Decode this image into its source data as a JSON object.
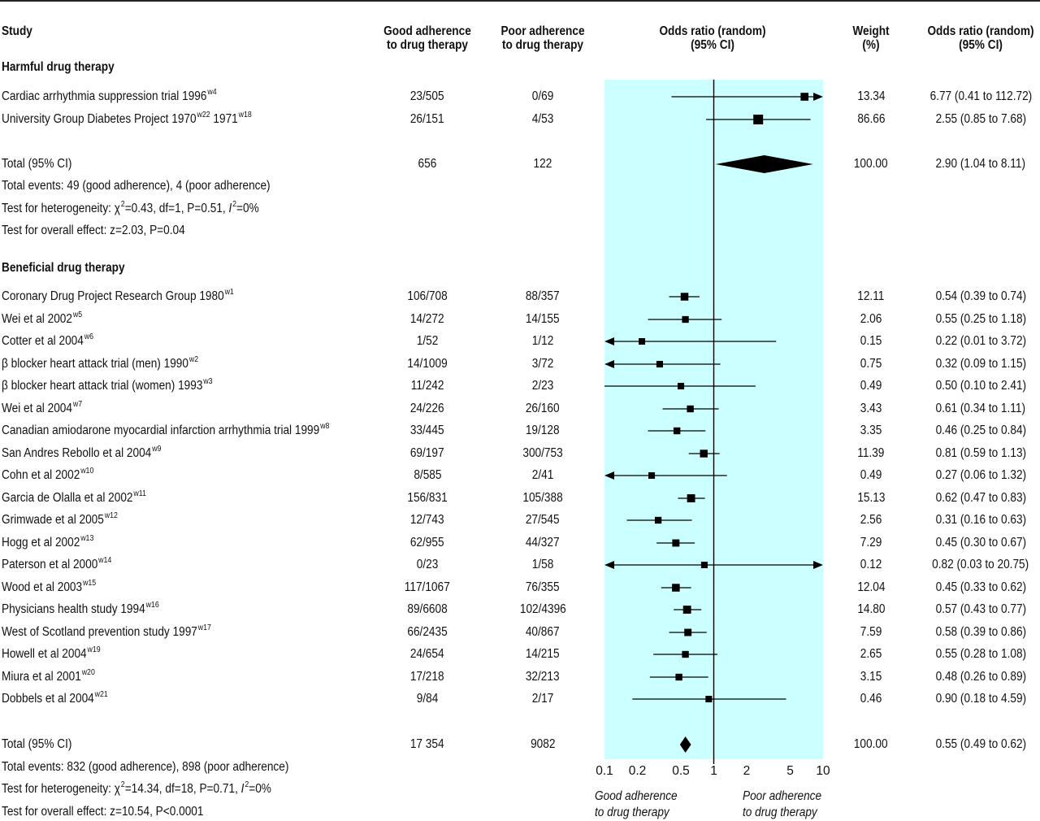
{
  "headers": {
    "study": "Study",
    "good": [
      "Good adherence",
      "to drug therapy"
    ],
    "poor": [
      "Poor adherence",
      "to drug therapy"
    ],
    "or_plot": [
      "Odds ratio (random)",
      "(95% CI)"
    ],
    "weight": [
      "Weight",
      "(%)"
    ],
    "or_text": [
      "Odds ratio (random)",
      "(95% CI)"
    ]
  },
  "harmful": {
    "title": "Harmful drug therapy",
    "total_label": "Total (95% CI)",
    "total_good": "656",
    "total_poor": "122",
    "total_weight": "100.00",
    "total_or": "2.90 (1.04 to 8.11)",
    "events": "Total events: 49 (good adherence), 4 (poor adherence)",
    "het_prefix": "Test for heterogeneity: ",
    "het_chi": "χ",
    "het_sup": "2",
    "het_mid": "=0.43, df=1, P=0.51, ",
    "het_i": "I",
    "het_isup": "2",
    "het_end": "=0%",
    "overall": "Test for overall effect: z=2.03, P=0.04"
  },
  "beneficial": {
    "title": "Beneficial drug therapy",
    "total_label": "Total (95% CI)",
    "total_good": "17 354",
    "total_poor": "9082",
    "total_weight": "100.00",
    "total_or": "0.55 (0.49 to 0.62)",
    "events": "Total events: 832 (good adherence), 898 (poor adherence)",
    "het_prefix": "Test for heterogeneity: ",
    "het_chi": "χ",
    "het_sup": "2",
    "het_mid": "=14.34, df=18, P=0.71, ",
    "het_i": "I",
    "het_isup": "2",
    "het_end": "=0%",
    "overall": "Test for overall effect: z=10.54, P<0.0001"
  },
  "axis": {
    "ticks": [
      "0.1",
      "0.2",
      "0.5",
      "1",
      "2",
      "5",
      "10"
    ],
    "left_label": [
      "Good adherence",
      "to drug therapy"
    ],
    "right_label": [
      "Poor adherence",
      "to drug therapy"
    ]
  },
  "chart_data": {
    "type": "forest",
    "x_scale": "log",
    "xlim": [
      0.1,
      10
    ],
    "reference_line": 1,
    "panel_color": "#ccffff",
    "groups": [
      {
        "name": "Harmful drug therapy",
        "studies": [
          {
            "name": "Cardiac arrhythmia suppression trial 1996",
            "sup": "w4",
            "good": "23/505",
            "poor": "0/69",
            "weight": "13.34",
            "or_text": "6.77 (0.41 to 112.72)",
            "or": 6.77,
            "lo": 0.41,
            "hi": 112.72
          },
          {
            "name": "University Group Diabetes Project 1970",
            "sup": "w22",
            "name2": " 1971",
            "sup2": "w18",
            "good": "26/151",
            "poor": "4/53",
            "weight": "86.66",
            "or_text": "2.55 (0.85 to 7.68)",
            "or": 2.55,
            "lo": 0.85,
            "hi": 7.68
          }
        ],
        "total": {
          "or": 2.9,
          "lo": 1.04,
          "hi": 8.11
        }
      },
      {
        "name": "Beneficial drug therapy",
        "studies": [
          {
            "name": "Coronary Drug Project Research Group 1980",
            "sup": "w1",
            "good": "106/708",
            "poor": "88/357",
            "weight": "12.11",
            "or_text": "0.54 (0.39 to 0.74)",
            "or": 0.54,
            "lo": 0.39,
            "hi": 0.74
          },
          {
            "name": "Wei et al 2002",
            "sup": "w5",
            "good": "14/272",
            "poor": "14/155",
            "weight": "2.06",
            "or_text": "0.55 (0.25 to 1.18)",
            "or": 0.55,
            "lo": 0.25,
            "hi": 1.18
          },
          {
            "name": "Cotter et al 2004",
            "sup": "w6",
            "good": "1/52",
            "poor": "1/12",
            "weight": "0.15",
            "or_text": "0.22 (0.01 to 3.72)",
            "or": 0.22,
            "lo": 0.01,
            "hi": 3.72
          },
          {
            "name": "β blocker heart attack trial (men) 1990",
            "sup": "w2",
            "good": "14/1009",
            "poor": "3/72",
            "weight": "0.75",
            "or_text": "0.32 (0.09 to 1.15)",
            "or": 0.32,
            "lo": 0.09,
            "hi": 1.15
          },
          {
            "name": "β blocker heart attack trial (women) 1993",
            "sup": "w3",
            "good": "11/242",
            "poor": "2/23",
            "weight": "0.49",
            "or_text": "0.50 (0.10 to 2.41)",
            "or": 0.5,
            "lo": 0.1,
            "hi": 2.41
          },
          {
            "name": "Wei et al 2004",
            "sup": "w7",
            "good": "24/226",
            "poor": "26/160",
            "weight": "3.43",
            "or_text": "0.61 (0.34 to 1.11)",
            "or": 0.61,
            "lo": 0.34,
            "hi": 1.11
          },
          {
            "name": "Canadian amiodarone myocardial infarction arrhythmia trial 1999",
            "sup": "w8",
            "good": "33/445",
            "poor": "19/128",
            "weight": "3.35",
            "or_text": "0.46 (0.25 to 0.84)",
            "or": 0.46,
            "lo": 0.25,
            "hi": 0.84
          },
          {
            "name": "San Andres Rebollo et al 2004",
            "sup": "w9",
            "good": "69/197",
            "poor": "300/753",
            "weight": "11.39",
            "or_text": "0.81 (0.59 to 1.13)",
            "or": 0.81,
            "lo": 0.59,
            "hi": 1.13
          },
          {
            "name": "Cohn et al 2002",
            "sup": "w10",
            "good": "8/585",
            "poor": "2/41",
            "weight": "0.49",
            "or_text": "0.27 (0.06 to 1.32)",
            "or": 0.27,
            "lo": 0.06,
            "hi": 1.32
          },
          {
            "name": "Garcia de Olalla et al 2002",
            "sup": "w11",
            "good": "156/831",
            "poor": "105/388",
            "weight": "15.13",
            "or_text": "0.62 (0.47 to 0.83)",
            "or": 0.62,
            "lo": 0.47,
            "hi": 0.83
          },
          {
            "name": "Grimwade et al 2005",
            "sup": "w12",
            "good": "12/743",
            "poor": "27/545",
            "weight": "2.56",
            "or_text": "0.31 (0.16 to 0.63)",
            "or": 0.31,
            "lo": 0.16,
            "hi": 0.63
          },
          {
            "name": "Hogg et al 2002",
            "sup": "w13",
            "good": "62/955",
            "poor": "44/327",
            "weight": "7.29",
            "or_text": "0.45 (0.30 to 0.67)",
            "or": 0.45,
            "lo": 0.3,
            "hi": 0.67
          },
          {
            "name": "Paterson et al 2000",
            "sup": "w14",
            "good": "0/23",
            "poor": "1/58",
            "weight": "0.12",
            "or_text": "0.82 (0.03 to 20.75)",
            "or": 0.82,
            "lo": 0.03,
            "hi": 20.75
          },
          {
            "name": "Wood et al 2003",
            "sup": "w15",
            "good": "117/1067",
            "poor": "76/355",
            "weight": "12.04",
            "or_text": "0.45 (0.33 to 0.62)",
            "or": 0.45,
            "lo": 0.33,
            "hi": 0.62
          },
          {
            "name": "Physicians health study 1994",
            "sup": "w16",
            "good": "89/6608",
            "poor": "102/4396",
            "weight": "14.80",
            "or_text": "0.57 (0.43 to 0.77)",
            "or": 0.57,
            "lo": 0.43,
            "hi": 0.77
          },
          {
            "name": "West of Scotland prevention study 1997",
            "sup": "w17",
            "good": "66/2435",
            "poor": "40/867",
            "weight": "7.59",
            "or_text": "0.58 (0.39 to 0.86)",
            "or": 0.58,
            "lo": 0.39,
            "hi": 0.86
          },
          {
            "name": "Howell et al 2004",
            "sup": "w19",
            "good": "24/654",
            "poor": "14/215",
            "weight": "2.65",
            "or_text": "0.55 (0.28 to 1.08)",
            "or": 0.55,
            "lo": 0.28,
            "hi": 1.08
          },
          {
            "name": "Miura et al 2001",
            "sup": "w20",
            "good": "17/218",
            "poor": "32/213",
            "weight": "3.15",
            "or_text": "0.48 (0.26 to 0.89)",
            "or": 0.48,
            "lo": 0.26,
            "hi": 0.89
          },
          {
            "name": "Dobbels et al 2004",
            "sup": "w21",
            "good": "9/84",
            "poor": "2/17",
            "weight": "0.46",
            "or_text": "0.90 (0.18 to 4.59)",
            "or": 0.9,
            "lo": 0.18,
            "hi": 4.59
          }
        ],
        "total": {
          "or": 0.55,
          "lo": 0.49,
          "hi": 0.62
        }
      }
    ]
  }
}
